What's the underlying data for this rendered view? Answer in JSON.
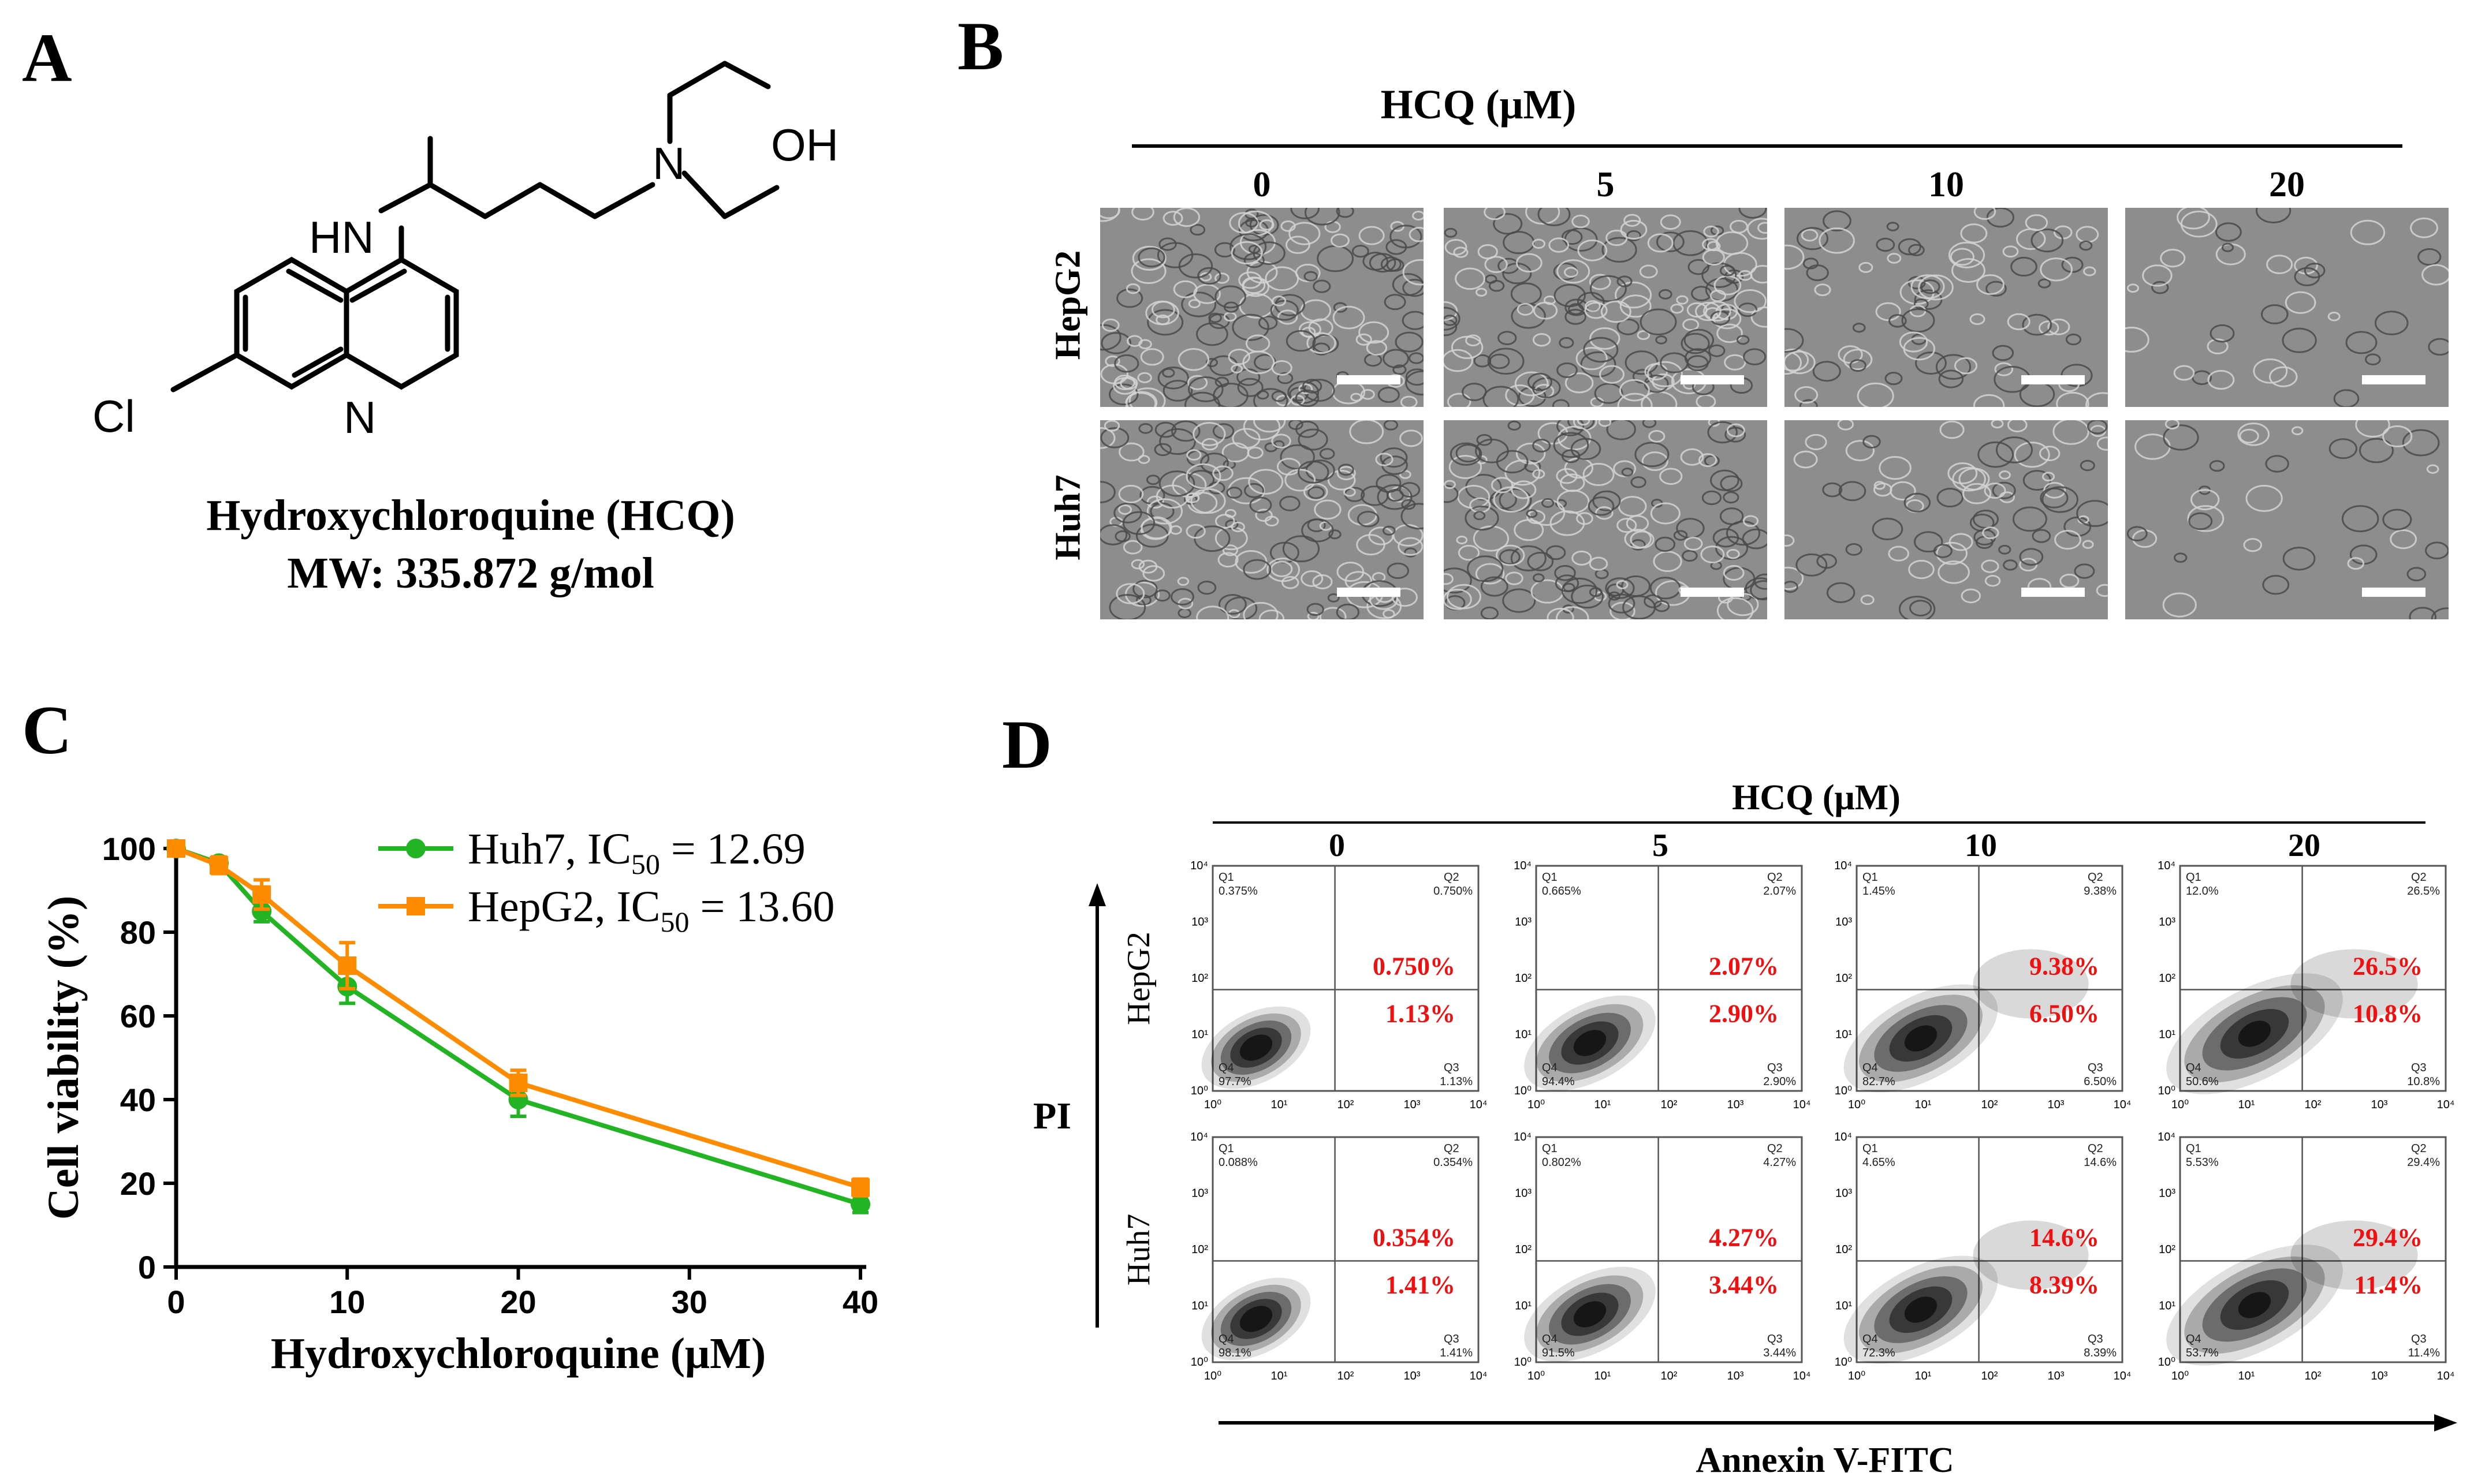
{
  "panels": {
    "a": {
      "letter": "A",
      "compound": "Hydroxychloroquine (HCQ)",
      "mw": "MW: 335.872 g/mol",
      "atoms": {
        "oh": "OH",
        "n_amine": "N",
        "hn": "HN",
        "cl": "Cl",
        "n_ring": "N"
      }
    },
    "b": {
      "letter": "B",
      "title": "HCQ (μM)",
      "doses": [
        "0",
        "5",
        "10",
        "20"
      ],
      "cell_lines": [
        "HepG2",
        "Huh7"
      ]
    },
    "c": {
      "letter": "C"
    },
    "d": {
      "letter": "D",
      "title": "HCQ (μM)",
      "doses": [
        "0",
        "5",
        "10",
        "20"
      ],
      "cell_lines": [
        "HepG2",
        "Huh7"
      ],
      "x_axis_label": "Annexin V-FITC",
      "y_axis_label": "PI",
      "quadrant_labels": [
        "Q1",
        "Q2",
        "Q3",
        "Q4"
      ],
      "tick_labels": [
        "10⁰",
        "10¹",
        "10²",
        "10³",
        "10⁴"
      ]
    }
  },
  "chart_data": [
    {
      "type": "line",
      "xlabel": "Hydroxychloroquine (μM)",
      "ylabel": "Cell viability (%)",
      "x": [
        0,
        2.5,
        5,
        10,
        20,
        40
      ],
      "x_ticks": [
        "0",
        "10",
        "20",
        "30",
        "40"
      ],
      "y_ticks": [
        0,
        20,
        40,
        60,
        80,
        100
      ],
      "ylim": [
        0,
        100
      ],
      "legend_position": "top-right",
      "series": [
        {
          "name": "Huh7, IC50 = 12.69",
          "name_main": "Huh7, IC",
          "name_sub": "50",
          "name_tail": " = 12.69",
          "color": "#22b422",
          "marker": "circle",
          "values": [
            100,
            96.5,
            85,
            67,
            40,
            15
          ],
          "errors": [
            0,
            1.5,
            2.5,
            4,
            4,
            2
          ]
        },
        {
          "name": "HepG2, IC50 = 13.60",
          "name_main": "HepG2, IC",
          "name_sub": "50",
          "name_tail": " = 13.60",
          "color": "#ff8c00",
          "marker": "square",
          "values": [
            100,
            96,
            89,
            72,
            44,
            19
          ],
          "errors": [
            0,
            2,
            3.5,
            5.5,
            3,
            2
          ]
        }
      ]
    },
    {
      "type": "scatter",
      "title": "HCQ (μM)",
      "xlabel": "Annexin V-FITC",
      "ylabel": "PI",
      "note": "Flow cytometry density plots; quadrant percentages",
      "rows": [
        {
          "cell_line": "HepG2",
          "plots": [
            {
              "dose": "0",
              "q1": "0.375%",
              "q2": "0.750%",
              "q3": "1.13%",
              "q4": "97.7%",
              "q2_red": "0.750%",
              "q3_red": "1.13%"
            },
            {
              "dose": "5",
              "q1": "0.665%",
              "q2": "2.07%",
              "q3": "2.90%",
              "q4": "94.4%",
              "q2_red": "2.07%",
              "q3_red": "2.90%"
            },
            {
              "dose": "10",
              "q1": "1.45%",
              "q2": "9.38%",
              "q3": "6.50%",
              "q4": "82.7%",
              "q2_red": "9.38%",
              "q3_red": "6.50%"
            },
            {
              "dose": "20",
              "q1": "12.0%",
              "q2": "26.5%",
              "q3": "10.8%",
              "q4": "50.6%",
              "q2_red": "26.5%",
              "q3_red": "10.8%"
            }
          ]
        },
        {
          "cell_line": "Huh7",
          "plots": [
            {
              "dose": "0",
              "q1": "0.088%",
              "q2": "0.354%",
              "q3": "1.41%",
              "q4": "98.1%",
              "q2_red": "0.354%",
              "q3_red": "1.41%"
            },
            {
              "dose": "5",
              "q1": "0.802%",
              "q2": "4.27%",
              "q3": "3.44%",
              "q4": "91.5%",
              "q2_red": "4.27%",
              "q3_red": "3.44%"
            },
            {
              "dose": "10",
              "q1": "4.65%",
              "q2": "14.6%",
              "q3": "8.39%",
              "q4": "72.3%",
              "q2_red": "14.6%",
              "q3_red": "8.39%"
            },
            {
              "dose": "20",
              "q1": "5.53%",
              "q2": "29.4%",
              "q3": "11.4%",
              "q4": "53.7%",
              "q2_red": "29.4%",
              "q3_red": "11.4%"
            }
          ]
        }
      ]
    }
  ]
}
